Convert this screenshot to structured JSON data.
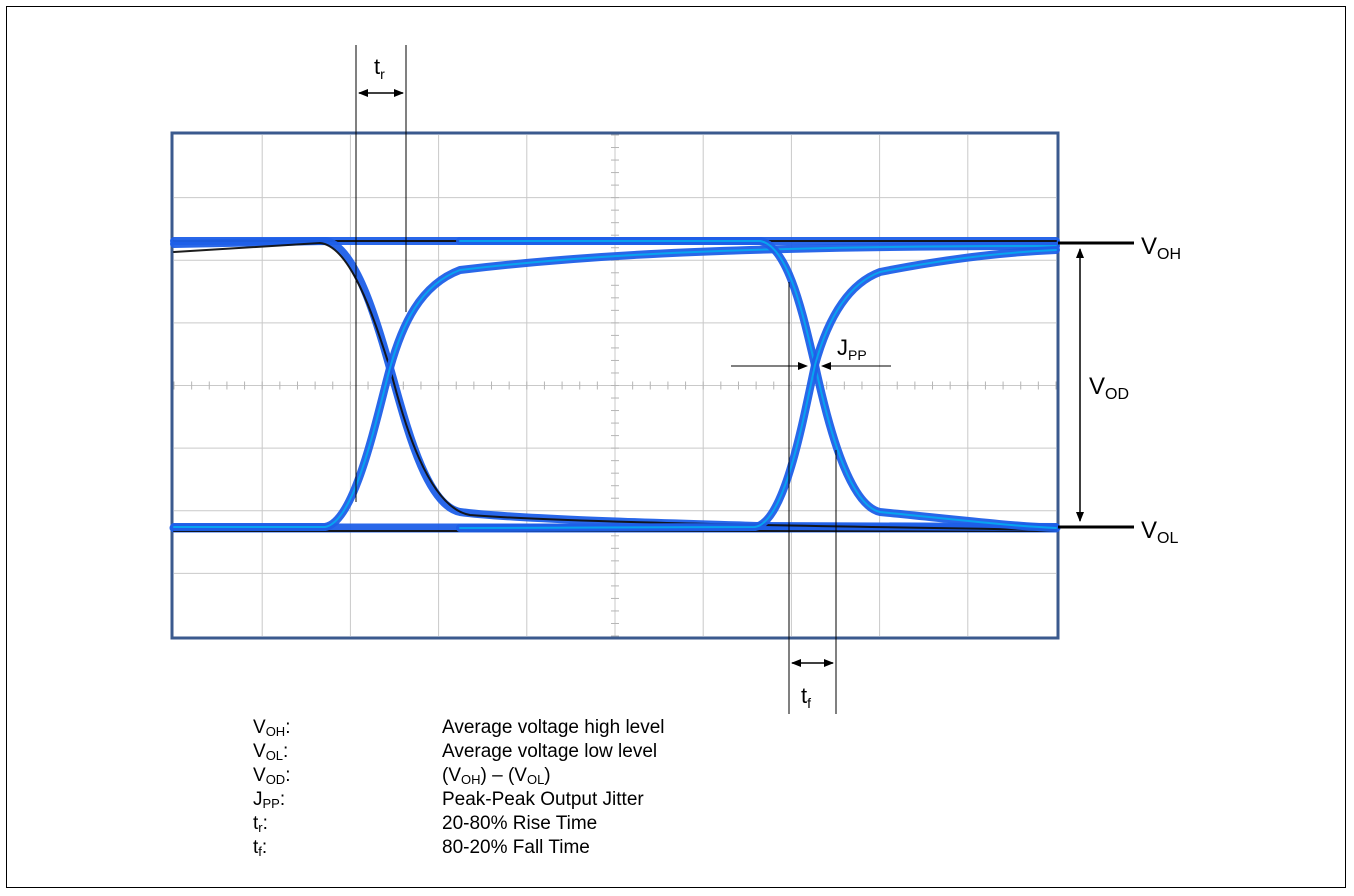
{
  "colors": {
    "grid": "#c9c9c9",
    "frame": "#3b5a8e",
    "trace": "#1d5fe8",
    "trace_core": "#06a6ef",
    "trace_dark": "#111111"
  },
  "annotations": {
    "tr": {
      "base": "t",
      "sub": "r"
    },
    "tf": {
      "base": "t",
      "sub": "f"
    },
    "jpp": {
      "base": "J",
      "sub": "PP"
    },
    "voh": {
      "base": "V",
      "sub": "OH"
    },
    "vol": {
      "base": "V",
      "sub": "OL"
    },
    "vod": {
      "base": "V",
      "sub": "OD"
    }
  },
  "legend": [
    {
      "sym_base": "V",
      "sym_sub": "OH",
      "sym_tail": ":",
      "desc": "Average voltage high level"
    },
    {
      "sym_base": "V",
      "sym_sub": "OL",
      "sym_tail": ":",
      "desc": "Average voltage low level"
    },
    {
      "sym_base": "V",
      "sym_sub": "OD",
      "sym_tail": ":",
      "desc": "(V_OH) – (V_OL)",
      "desc_parts": [
        "(V",
        "OH",
        ") – (V",
        "OL",
        ")"
      ]
    },
    {
      "sym_base": "J",
      "sym_sub": "PP",
      "sym_tail": ":",
      "desc": "Peak-Peak Output Jitter"
    },
    {
      "sym_base": "t",
      "sym_sub": "r",
      "sym_tail": ":",
      "desc": "20-80% Rise Time"
    },
    {
      "sym_base": "t",
      "sym_sub": "f",
      "sym_tail": ":",
      "desc": "80-20% Fall Time"
    }
  ]
}
